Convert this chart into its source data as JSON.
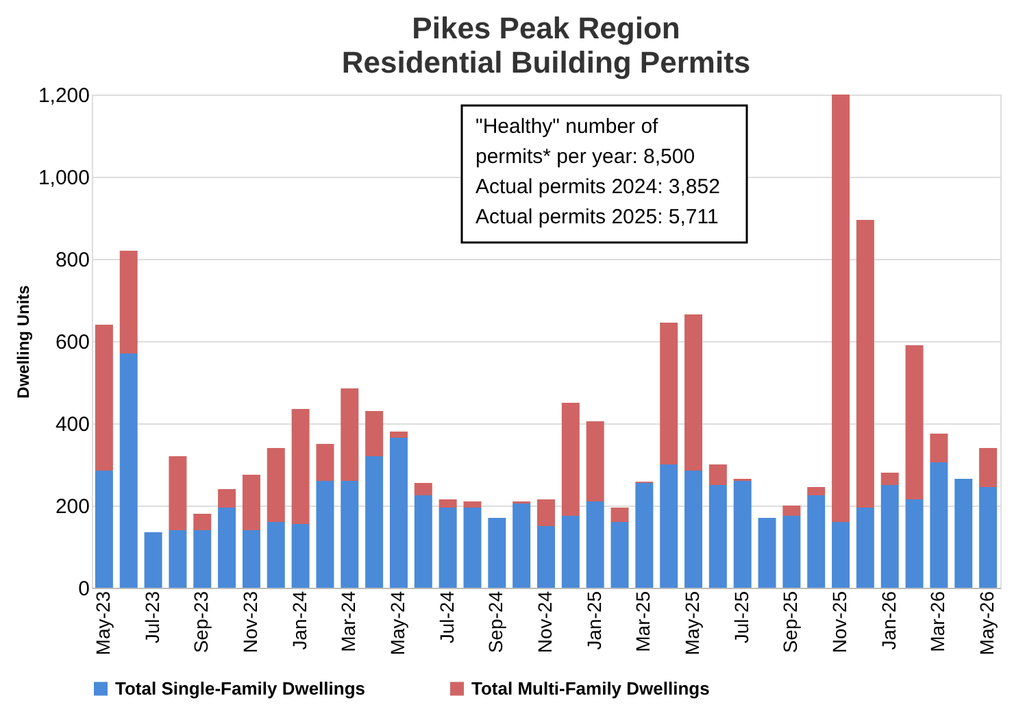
{
  "chart_data": {
    "type": "bar",
    "title": "Pikes Peak Region",
    "subtitle": "Residential Building Permits",
    "ylabel": "Dwelling Units",
    "categories": [
      "May-23",
      null,
      "Jul-23",
      null,
      "Sep-23",
      null,
      "Nov-23",
      null,
      "Jan-24",
      null,
      "Mar-24",
      null,
      "May-24",
      null,
      "Jul-24",
      null,
      "Sep-24",
      null,
      "Nov-24",
      null,
      "Jan-25",
      null,
      "Mar-25",
      null,
      "May-25",
      null,
      "Jul-25",
      null,
      "Sep-25",
      null,
      "Nov-25",
      null,
      "Jan-26",
      null,
      "Mar-26",
      null,
      "May-26"
    ],
    "series": [
      {
        "name": "Total Single-Family Dwellings",
        "color": "#4a8ad8",
        "values": [
          285,
          570,
          135,
          140,
          140,
          195,
          140,
          160,
          155,
          260,
          260,
          320,
          365,
          225,
          195,
          195,
          170,
          205,
          150,
          175,
          210,
          160,
          255,
          300,
          285,
          250,
          260,
          170,
          175,
          225,
          160,
          195,
          250,
          215,
          305,
          265,
          245
        ]
      },
      {
        "name": "Total Multi-Family Dwellings",
        "color": "#d06464",
        "values": [
          355,
          250,
          0,
          180,
          40,
          45,
          135,
          180,
          280,
          90,
          225,
          110,
          15,
          30,
          20,
          15,
          0,
          5,
          65,
          275,
          195,
          35,
          3,
          345,
          380,
          50,
          5,
          0,
          25,
          20,
          1040,
          700,
          30,
          375,
          70,
          0,
          95
        ]
      }
    ],
    "stacked": true,
    "ylim": [
      0,
      1200
    ],
    "yticks": [
      {
        "value": 0,
        "label": "0"
      },
      {
        "value": 200,
        "label": "200"
      },
      {
        "value": 400,
        "label": "400"
      },
      {
        "value": 600,
        "label": "600"
      },
      {
        "value": 800,
        "label": "800"
      },
      {
        "value": 1000,
        "label": "1,000"
      },
      {
        "value": 1200,
        "label": "1,200"
      }
    ],
    "grid": "y",
    "legend": "bottom",
    "annotations": [
      "\"Healthy\" number of\npermits* per year: 8,500\nActual permits 2024: 3,852\nActual permits 2025: 5,711"
    ]
  }
}
